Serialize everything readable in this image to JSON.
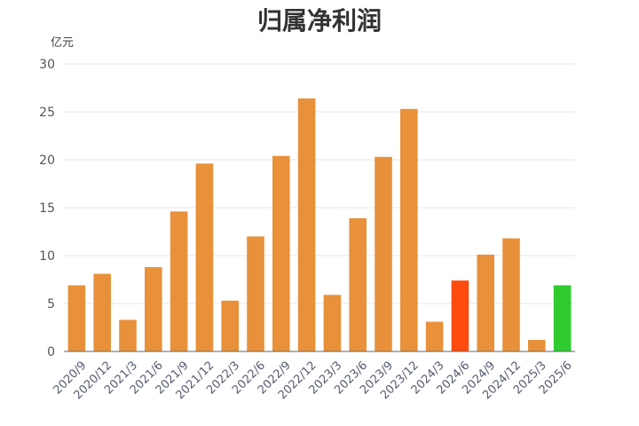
{
  "chart_data": {
    "type": "bar",
    "title": "归属净利润",
    "unit_label": "亿元",
    "ylim": [
      0,
      30
    ],
    "yticks": [
      0,
      5,
      10,
      15,
      20,
      25,
      30
    ],
    "grid": true,
    "legend": "none",
    "default_color": "#E8913A",
    "categories": [
      "2020/9",
      "2020/12",
      "2021/3",
      "2021/6",
      "2021/9",
      "2021/12",
      "2022/3",
      "2022/6",
      "2022/9",
      "2022/12",
      "2023/3",
      "2023/6",
      "2023/9",
      "2023/12",
      "2024/3",
      "2024/6",
      "2024/9",
      "2024/12",
      "2025/3",
      "2025/6"
    ],
    "values": [
      6.9,
      8.1,
      3.3,
      8.8,
      14.6,
      19.6,
      5.3,
      12.0,
      20.4,
      26.4,
      5.9,
      13.9,
      20.3,
      25.3,
      3.1,
      7.4,
      10.1,
      11.8,
      1.2,
      6.9
    ],
    "highlights": [
      {
        "category": "2024/6",
        "color": "#FF4B0F"
      },
      {
        "category": "2025/6",
        "color": "#2ECC2E"
      }
    ]
  }
}
